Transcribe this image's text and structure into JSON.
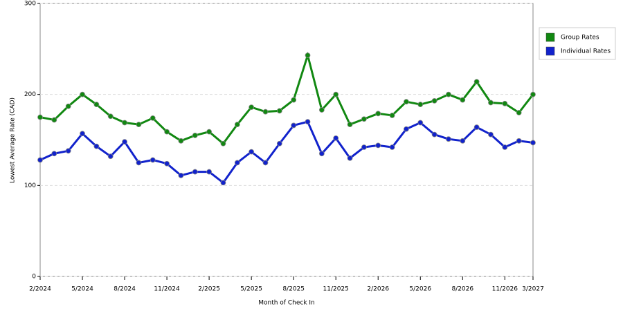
{
  "chart_data": {
    "type": "line",
    "x_label": "Month of Check In",
    "y_label": "Lowest Average Rate (CAD)",
    "categories": [
      "2/2024",
      null,
      null,
      "5/2024",
      null,
      null,
      "8/2024",
      null,
      null,
      "11/2024",
      null,
      null,
      "2/2025",
      null,
      null,
      "5/2025",
      null,
      null,
      "8/2025",
      null,
      null,
      "11/2025",
      null,
      null,
      "2/2026",
      null,
      null,
      "5/2026",
      null,
      null,
      "8/2026",
      null,
      null,
      "11/2026",
      null,
      "3/2027"
    ],
    "series": [
      {
        "name": "Group Rates",
        "color": "#118811",
        "values": [
          175,
          172,
          187,
          200,
          189,
          176,
          169,
          167,
          174,
          159,
          149,
          155,
          159,
          146,
          167,
          186,
          181,
          182,
          194,
          243,
          183,
          200,
          167,
          173,
          179,
          177,
          192,
          189,
          193,
          200,
          194,
          214,
          191,
          190,
          180,
          200
        ]
      },
      {
        "name": "Individual Rates",
        "color": "#1122cc",
        "values": [
          128,
          135,
          138,
          157,
          143,
          132,
          148,
          125,
          128,
          124,
          111,
          115,
          115,
          103,
          125,
          137,
          125,
          146,
          166,
          170,
          135,
          152,
          130,
          142,
          144,
          142,
          162,
          169,
          156,
          151,
          149,
          164,
          156,
          142,
          149,
          147
        ]
      }
    ],
    "ylim": [
      0,
      300
    ],
    "yticks": [
      0,
      100,
      200,
      300
    ],
    "grid": true,
    "legend": "right"
  }
}
